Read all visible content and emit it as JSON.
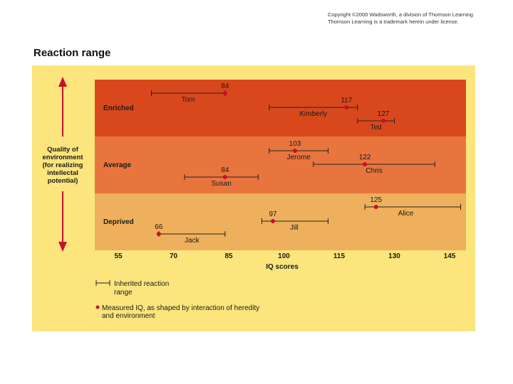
{
  "copyright": {
    "line1": "Copyright ©2000 Wadsworth, a division of Thomson Learning",
    "line2": "Thomson Learning is a trademark herein under license."
  },
  "chart_data": {
    "type": "range",
    "title": "Reaction range",
    "xlabel": "IQ scores",
    "ylabel": "Quality of environment (for realizing intellectal potential)",
    "ylabel_lines": [
      "Quality of",
      "environment",
      "(for realizing",
      "intellectal",
      "potential)"
    ],
    "xlim": [
      47,
      152
    ],
    "xticks": [
      55,
      70,
      85,
      100,
      115,
      130,
      145
    ],
    "bands": [
      {
        "name": "Enriched",
        "color": "#d9481c"
      },
      {
        "name": "Average",
        "color": "#e8753e"
      },
      {
        "name": "Deprived",
        "color": "#eeb05c"
      }
    ],
    "people": [
      {
        "name": "Tom",
        "iq": 84,
        "range": [
          64,
          84
        ],
        "environment": "Enriched"
      },
      {
        "name": "Kimberly",
        "iq": 117,
        "range": [
          96,
          120
        ],
        "environment": "Enriched"
      },
      {
        "name": "Ted",
        "iq": 127,
        "range": [
          120,
          130
        ],
        "environment": "Enriched"
      },
      {
        "name": "Jerome",
        "iq": 103,
        "range": [
          96,
          112
        ],
        "environment": "Average"
      },
      {
        "name": "Chris",
        "iq": 122,
        "range": [
          108,
          141
        ],
        "environment": "Average"
      },
      {
        "name": "Susan",
        "iq": 84,
        "range": [
          73,
          93
        ],
        "environment": "Average"
      },
      {
        "name": "Alice",
        "iq": 125,
        "range": [
          122,
          148
        ],
        "environment": "Deprived"
      },
      {
        "name": "Jill",
        "iq": 97,
        "range": [
          94,
          112
        ],
        "environment": "Deprived"
      },
      {
        "name": "Jack",
        "iq": 66,
        "range": [
          66,
          84
        ],
        "environment": "Deprived"
      }
    ],
    "legend": {
      "range_label": [
        "Inherited reaction",
        "range"
      ],
      "measured_label": [
        "Measured IQ, as shaped by interaction of heredity",
        "and environment"
      ]
    },
    "colors": {
      "dot": "#c8102e",
      "line": "#222222",
      "panel": "#fbe57c",
      "arrow": "#c8102e"
    }
  }
}
